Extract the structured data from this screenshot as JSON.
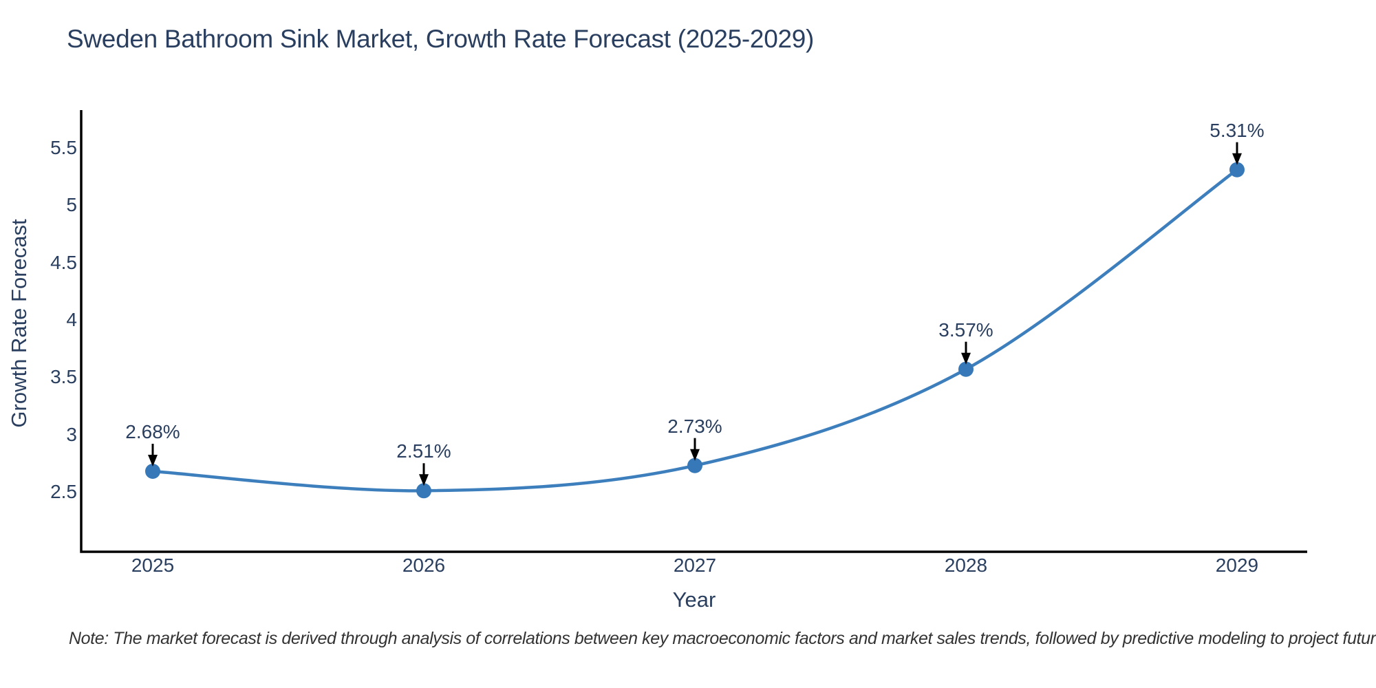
{
  "chart_data": {
    "type": "line",
    "title": "Sweden Bathroom Sink Market, Growth Rate Forecast (2025-2029)",
    "xlabel": "Year",
    "ylabel": "Growth Rate Forecast",
    "x": [
      2025,
      2026,
      2027,
      2028,
      2029
    ],
    "xtick_labels": [
      "2025",
      "2026",
      "2027",
      "2028",
      "2029"
    ],
    "values": [
      2.68,
      2.51,
      2.73,
      3.57,
      5.31
    ],
    "point_labels": [
      "2.68%",
      "2.51%",
      "2.73%",
      "3.57%",
      "5.31%"
    ],
    "ytick_values": [
      2.5,
      3,
      3.5,
      4,
      4.5,
      5,
      5.5
    ],
    "ytick_labels": [
      "2.5",
      "3",
      "3.5",
      "4",
      "4.5",
      "5",
      "5.5"
    ],
    "xlim": [
      2024.736,
      2029.259
    ],
    "ylim": [
      1.978,
      5.83
    ],
    "grid": false,
    "legend": "none",
    "line_shape": "spline",
    "line_color": "#3d7ebd",
    "marker_color": "#3678b8",
    "axis_color": "#000000",
    "text_color": "#2a3f5f",
    "arrow_color": "#000000"
  },
  "note": {
    "text": "Note: The market forecast is derived through analysis of correlations between key macroeconomic factors and market sales trends, followed by predictive modeling to project future sales"
  }
}
